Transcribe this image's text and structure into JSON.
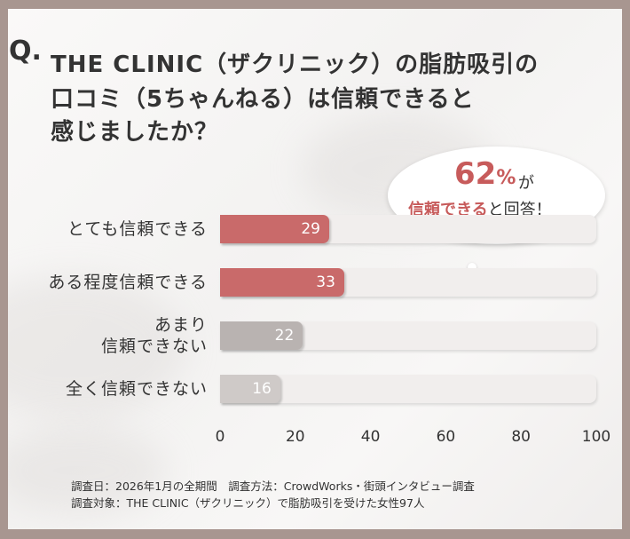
{
  "question": {
    "mark": "Q.",
    "lines": [
      "THE CLINIC（ザクリニック）の脂肪吸引の",
      "口コミ（5ちゃんねる）は信頼できると",
      "感じましたか？"
    ]
  },
  "callout": {
    "percent": "62",
    "percent_sign": "%",
    "suffix": "が",
    "highlight": "信頼できる",
    "tail": "と回答！"
  },
  "chart_data": {
    "type": "bar",
    "orientation": "horizontal",
    "categories": [
      "とても信頼できる",
      "ある程度信頼できる",
      "あまり\n信頼できない",
      "全く信頼できない"
    ],
    "values": [
      29,
      33,
      22,
      16
    ],
    "xlim": [
      0,
      100
    ],
    "xticks": [
      "0",
      "20",
      "40",
      "60",
      "80",
      "100"
    ],
    "colors": [
      "#c96a6a",
      "#c96a6a",
      "#b9b3b1",
      "#cfcac8"
    ]
  },
  "footer": {
    "line1": "調査日：2026年1月の全期間　調査方法：CrowdWorks・街頭インタビュー調査",
    "line2": "調査対象：THE CLINIC（ザクリニック）で脂肪吸引を受けた女性97人"
  }
}
